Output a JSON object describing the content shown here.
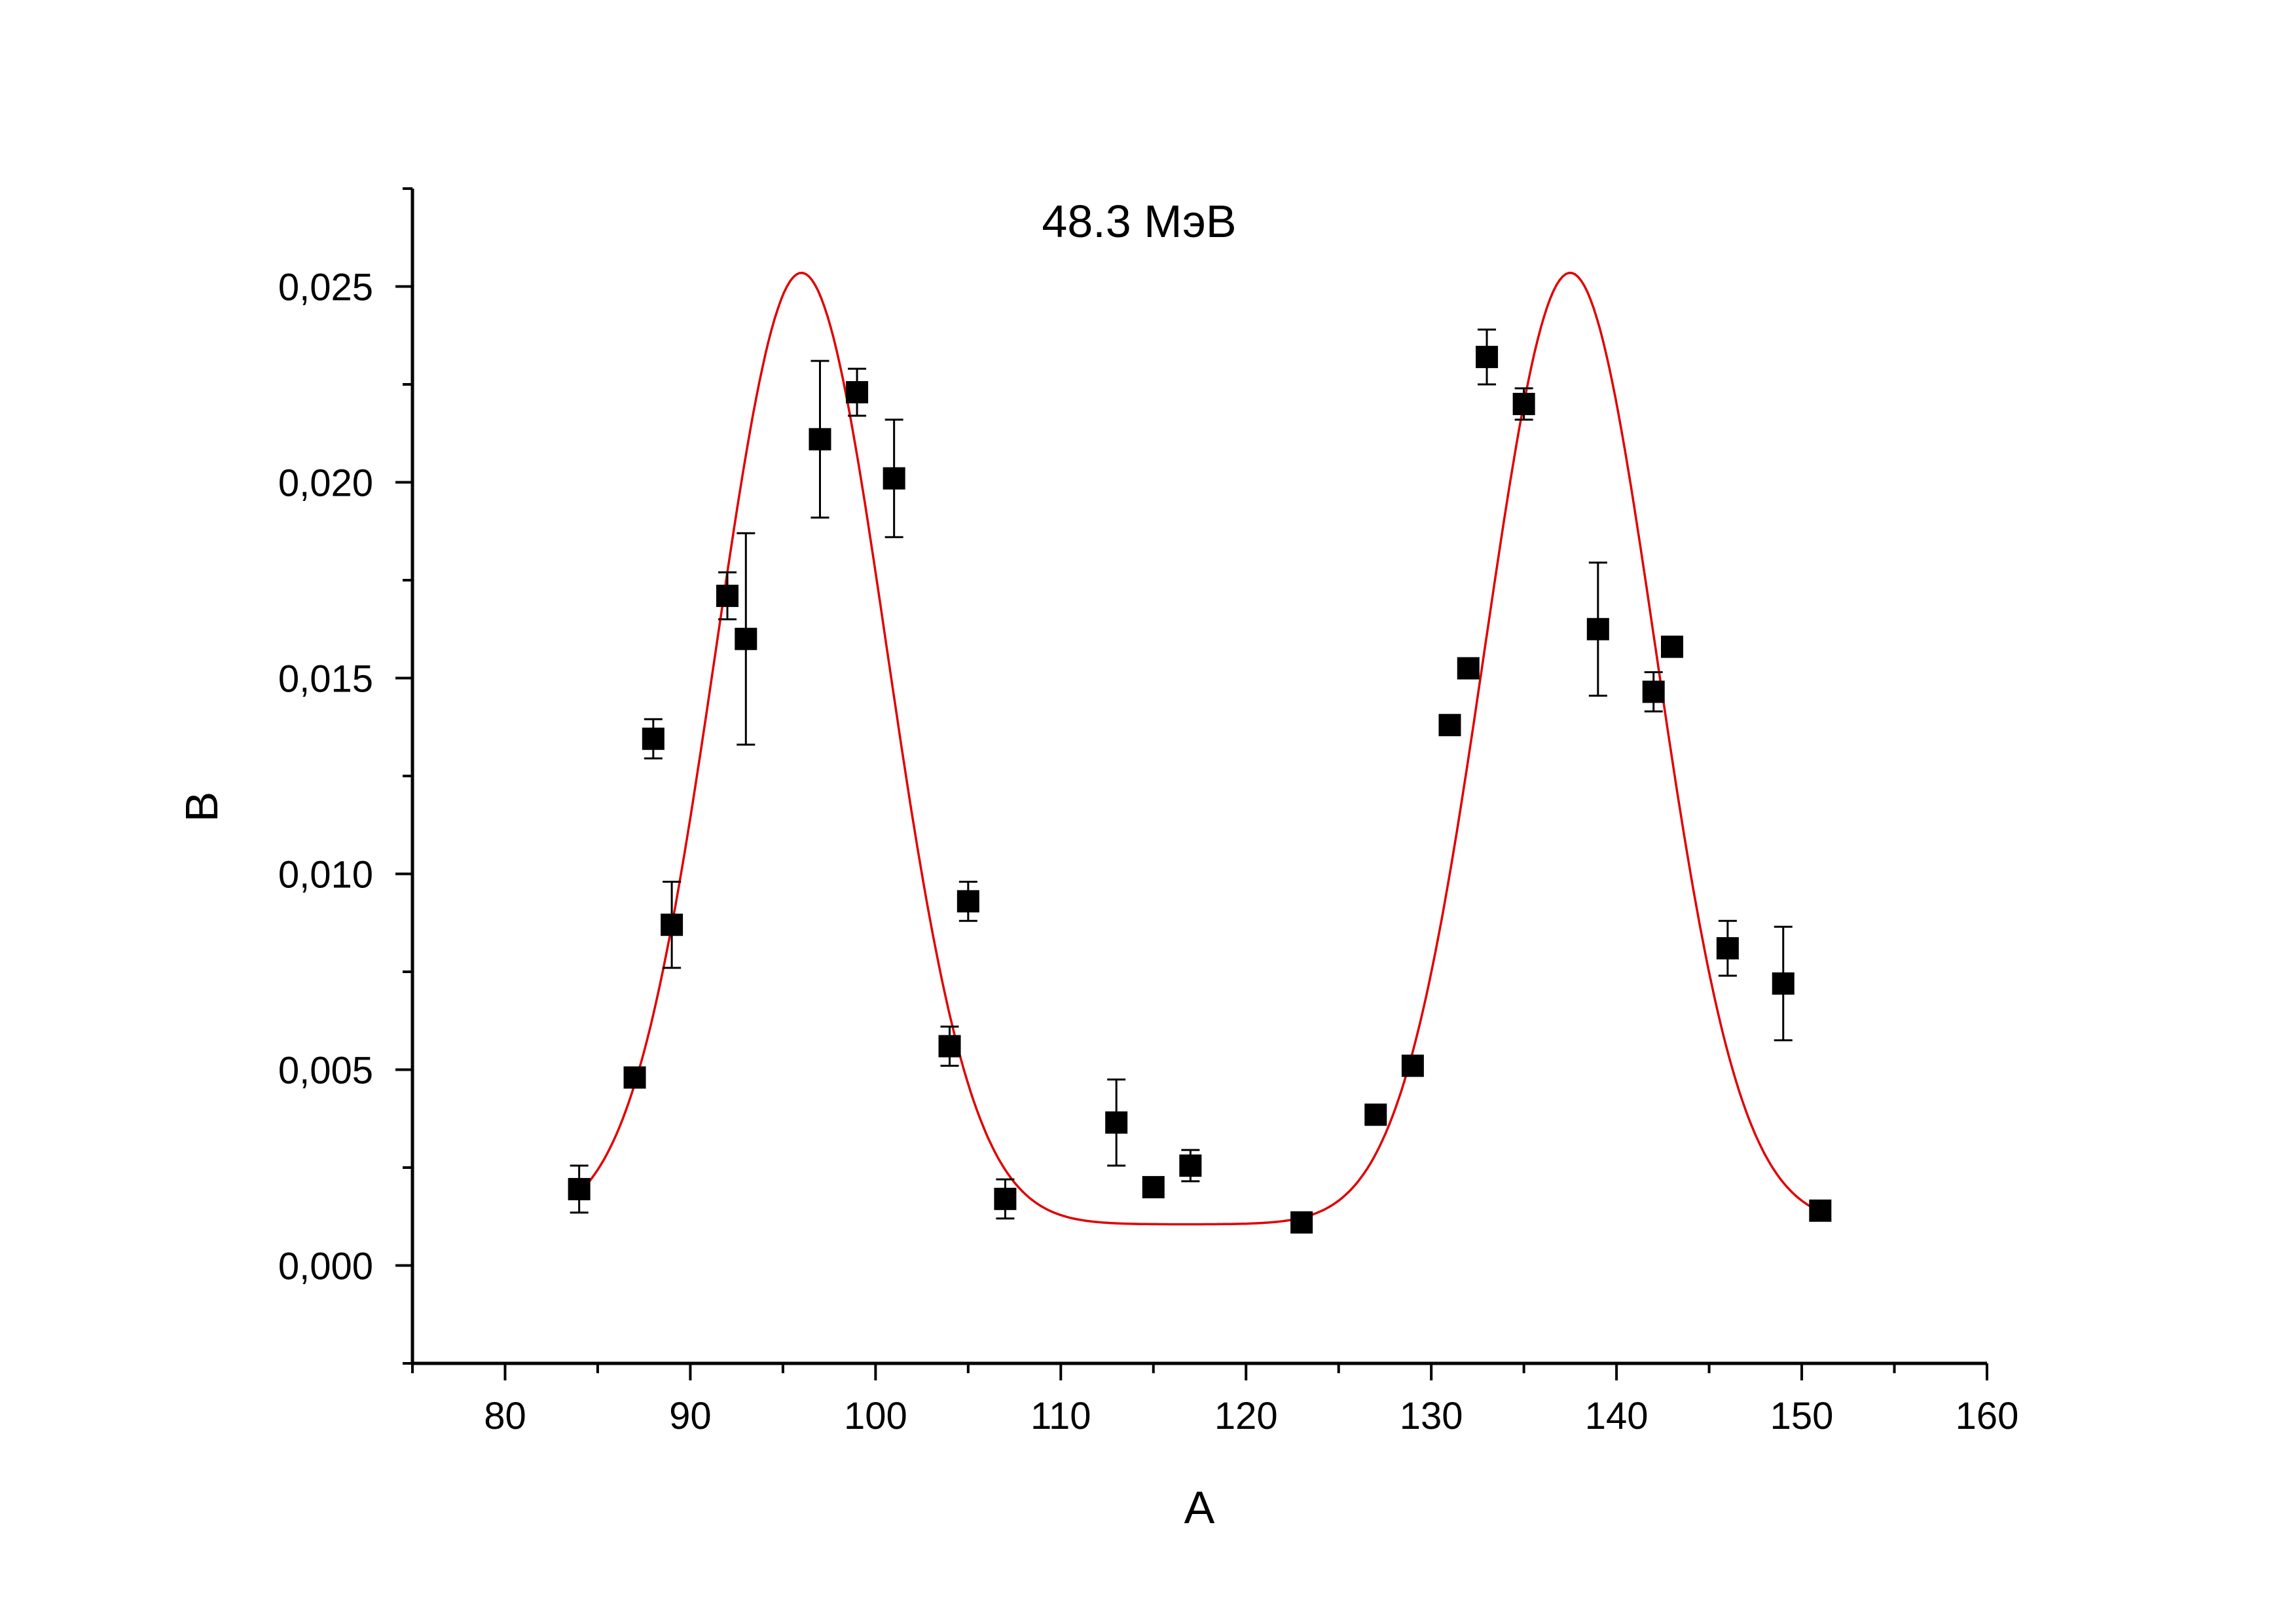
{
  "chart_data": {
    "type": "scatter",
    "title": "48.3 МэВ",
    "xlabel": "A",
    "ylabel": "B",
    "xlim": [
      75,
      160
    ],
    "ylim": [
      -0.0025,
      0.0275
    ],
    "grid": false,
    "x_ticks": [
      {
        "value": 80,
        "label": "80"
      },
      {
        "value": 90,
        "label": "90"
      },
      {
        "value": 100,
        "label": "100"
      },
      {
        "value": 110,
        "label": "110"
      },
      {
        "value": 120,
        "label": "120"
      },
      {
        "value": 130,
        "label": "130"
      },
      {
        "value": 140,
        "label": "140"
      },
      {
        "value": 150,
        "label": "150"
      },
      {
        "value": 160,
        "label": "160"
      }
    ],
    "x_minor_ticks": [
      75,
      85,
      95,
      105,
      115,
      125,
      135,
      145,
      155
    ],
    "y_ticks": [
      {
        "value": 0.0,
        "label": "0,000"
      },
      {
        "value": 0.005,
        "label": "0,005"
      },
      {
        "value": 0.01,
        "label": "0,010"
      },
      {
        "value": 0.015,
        "label": "0,015"
      },
      {
        "value": 0.02,
        "label": "0,020"
      },
      {
        "value": 0.025,
        "label": "0,025"
      }
    ],
    "y_minor_ticks": [
      -0.0025,
      0.0025,
      0.0075,
      0.0125,
      0.0175,
      0.0225,
      0.0275
    ],
    "series": [
      {
        "kind": "points",
        "marker": "square",
        "color": "#000000",
        "points": [
          {
            "x": 84,
            "y": 0.00195,
            "err": 0.0006
          },
          {
            "x": 87,
            "y": 0.0048,
            "err": 0
          },
          {
            "x": 88,
            "y": 0.01345,
            "err": 0.0005
          },
          {
            "x": 89,
            "y": 0.0087,
            "err": 0.0011
          },
          {
            "x": 92,
            "y": 0.0171,
            "err": 0.0006
          },
          {
            "x": 93,
            "y": 0.016,
            "err": 0.0027
          },
          {
            "x": 97,
            "y": 0.0211,
            "err": 0.002
          },
          {
            "x": 99,
            "y": 0.0223,
            "err": 0.0006
          },
          {
            "x": 101,
            "y": 0.0201,
            "err": 0.0015
          },
          {
            "x": 104,
            "y": 0.0056,
            "err": 0.0005
          },
          {
            "x": 105,
            "y": 0.0093,
            "err": 0.0005
          },
          {
            "x": 107,
            "y": 0.0017,
            "err": 0.0005
          },
          {
            "x": 113,
            "y": 0.00365,
            "err": 0.0011
          },
          {
            "x": 115,
            "y": 0.002,
            "err": 0
          },
          {
            "x": 117,
            "y": 0.00255,
            "err": 0.0004
          },
          {
            "x": 123,
            "y": 0.0011,
            "err": 0
          },
          {
            "x": 127,
            "y": 0.00385,
            "err": 0
          },
          {
            "x": 129,
            "y": 0.0051,
            "err": 0
          },
          {
            "x": 131,
            "y": 0.0138,
            "err": 0
          },
          {
            "x": 132,
            "y": 0.01525,
            "err": 0
          },
          {
            "x": 133,
            "y": 0.0232,
            "err": 0.0007
          },
          {
            "x": 135,
            "y": 0.022,
            "err": 0.0004
          },
          {
            "x": 139,
            "y": 0.01625,
            "err": 0.0017
          },
          {
            "x": 142,
            "y": 0.01465,
            "err": 0.0005
          },
          {
            "x": 143,
            "y": 0.0158,
            "err": 0
          },
          {
            "x": 146,
            "y": 0.0081,
            "err": 0.0007
          },
          {
            "x": 149,
            "y": 0.0072,
            "err": 0.00145
          },
          {
            "x": 151,
            "y": 0.0014,
            "err": 0
          }
        ]
      },
      {
        "kind": "fit-curve",
        "color": "#e00000",
        "x_range": [
          84,
          151
        ],
        "peaks": [
          {
            "center": 96.0,
            "amplitude": 0.0243,
            "sigma": 4.6
          },
          {
            "center": 137.5,
            "amplitude": 0.0243,
            "sigma": 4.6
          }
        ],
        "baseline": 0.00105
      }
    ]
  }
}
